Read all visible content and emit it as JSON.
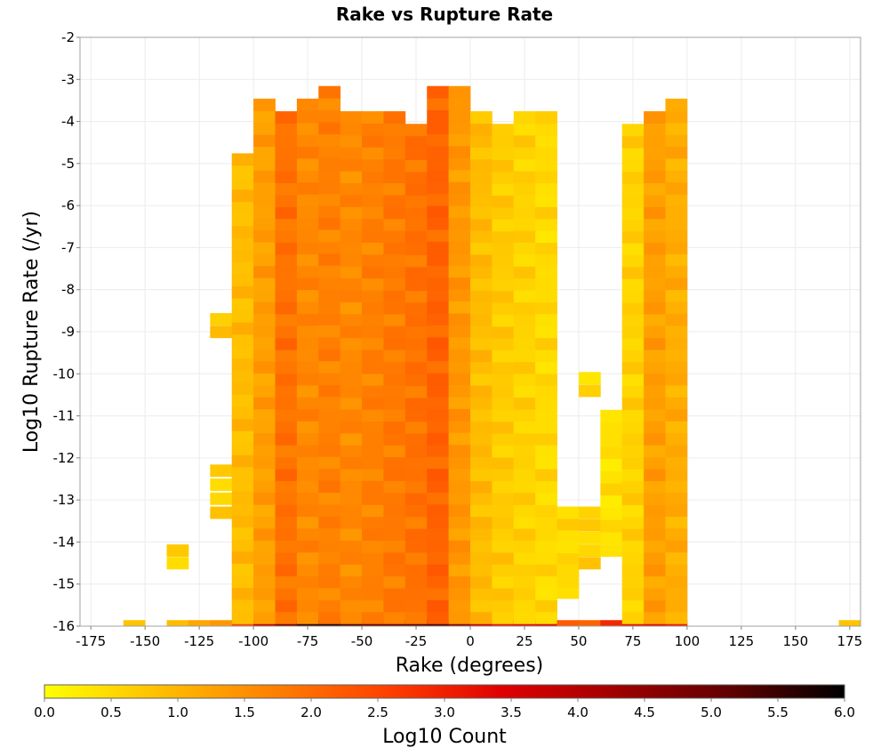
{
  "chart_data": {
    "type": "heatmap",
    "title": "Rake vs Rupture Rate",
    "xlabel": "Rake (degrees)",
    "ylabel": "Log10 Rupture Rate (/yr)",
    "xlim": [
      -180,
      180
    ],
    "ylim": [
      -16,
      -2
    ],
    "x_ticks": [
      -175,
      -150,
      -125,
      -100,
      -75,
      -50,
      -25,
      0,
      25,
      50,
      75,
      100,
      125,
      150,
      175
    ],
    "y_ticks": [
      -2,
      -3,
      -4,
      -5,
      -6,
      -7,
      -8,
      -9,
      -10,
      -11,
      -12,
      -13,
      -14,
      -15,
      -16
    ],
    "grid": true,
    "bin_width_rake": 10,
    "bin_height_rate": 0.286,
    "colorbar": {
      "label": "Log10 Count",
      "min": 0.0,
      "max": 6.0,
      "ticks": [
        "0.0",
        "0.5",
        "1.0",
        "1.5",
        "2.0",
        "2.5",
        "3.0",
        "3.5",
        "4.0",
        "4.5",
        "5.0",
        "5.5",
        "6.0"
      ],
      "colors": [
        "#ffff00",
        "#ffbf00",
        "#ff8000",
        "#ff4000",
        "#e00000",
        "#a00000",
        "#600000",
        "#000000"
      ]
    },
    "columns": [
      {
        "rake": -155,
        "bands": [
          [
            -16,
            -16,
            0.8
          ]
        ]
      },
      {
        "rake": -135,
        "bands": [
          [
            -16,
            -16,
            0.9
          ],
          [
            -14.5,
            -14.2,
            0.5
          ]
        ]
      },
      {
        "rake": -125,
        "bands": [
          [
            -16,
            -16,
            1.2
          ]
        ]
      },
      {
        "rake": -115,
        "bands": [
          [
            -16,
            -16,
            1.4
          ],
          [
            -13.3,
            -12.3,
            0.6
          ],
          [
            -9.0,
            -8.7,
            0.7
          ]
        ]
      },
      {
        "rake": -105,
        "bands": [
          [
            -16,
            -16,
            2.5
          ],
          [
            -15.8,
            -4.9,
            0.9
          ]
        ]
      },
      {
        "rake": -95,
        "bands": [
          [
            -16,
            -16,
            3.8
          ],
          [
            -15.8,
            -3.6,
            1.3
          ]
        ]
      },
      {
        "rake": -85,
        "bands": [
          [
            -16,
            -16,
            4.8
          ],
          [
            -15.8,
            -3.9,
            1.9
          ]
        ]
      },
      {
        "rake": -75,
        "bands": [
          [
            -16,
            -16,
            5.6
          ],
          [
            -15.8,
            -3.6,
            1.6
          ]
        ]
      },
      {
        "rake": -65,
        "bands": [
          [
            -16,
            -16,
            5.7
          ],
          [
            -15.8,
            -3.3,
            1.7
          ]
        ]
      },
      {
        "rake": -55,
        "bands": [
          [
            -16,
            -16,
            5.3
          ],
          [
            -15.8,
            -3.9,
            1.6
          ]
        ]
      },
      {
        "rake": -45,
        "bands": [
          [
            -16,
            -16,
            5.0
          ],
          [
            -15.8,
            -3.9,
            1.7
          ]
        ]
      },
      {
        "rake": -35,
        "bands": [
          [
            -16,
            -16,
            5.1
          ],
          [
            -15.8,
            -3.9,
            1.8
          ]
        ]
      },
      {
        "rake": -25,
        "bands": [
          [
            -16,
            -16,
            5.2
          ],
          [
            -15.8,
            -4.2,
            1.9
          ]
        ]
      },
      {
        "rake": -15,
        "bands": [
          [
            -16,
            -16,
            5.3
          ],
          [
            -15.8,
            -3.3,
            2.1
          ]
        ]
      },
      {
        "rake": -5,
        "bands": [
          [
            -16,
            -16,
            4.6
          ],
          [
            -15.8,
            -3.3,
            1.4
          ]
        ]
      },
      {
        "rake": 5,
        "bands": [
          [
            -16,
            -16,
            3.7
          ],
          [
            -15.8,
            -3.9,
            0.9
          ]
        ]
      },
      {
        "rake": 15,
        "bands": [
          [
            -16,
            -16,
            3.2
          ],
          [
            -15.8,
            -4.2,
            0.7
          ]
        ]
      },
      {
        "rake": 25,
        "bands": [
          [
            -16,
            -16,
            3.3
          ],
          [
            -15.8,
            -3.9,
            0.6
          ]
        ]
      },
      {
        "rake": 35,
        "bands": [
          [
            -16,
            -16,
            3.4
          ],
          [
            -15.8,
            -3.9,
            0.5
          ]
        ]
      },
      {
        "rake": 45,
        "bands": [
          [
            -16,
            -16,
            2.2
          ],
          [
            -15.2,
            -13.3,
            0.5
          ]
        ]
      },
      {
        "rake": 55,
        "bands": [
          [
            -16,
            -16,
            2.1
          ],
          [
            -14.5,
            -13.3,
            0.6
          ],
          [
            -10.4,
            -10.1,
            0.4
          ]
        ]
      },
      {
        "rake": 65,
        "bands": [
          [
            -16,
            -16,
            2.9
          ],
          [
            -14.2,
            -11.0,
            0.4
          ]
        ]
      },
      {
        "rake": 75,
        "bands": [
          [
            -16,
            -16,
            3.2
          ],
          [
            -15.8,
            -4.2,
            0.6
          ]
        ]
      },
      {
        "rake": 85,
        "bands": [
          [
            -16,
            -16,
            3.3
          ],
          [
            -15.8,
            -3.9,
            1.3
          ]
        ]
      },
      {
        "rake": 95,
        "bands": [
          [
            -16,
            -16,
            3.1
          ],
          [
            -15.8,
            -3.6,
            1.1
          ]
        ]
      },
      {
        "rake": 175,
        "bands": [
          [
            -16,
            -16,
            0.8
          ]
        ]
      }
    ]
  }
}
